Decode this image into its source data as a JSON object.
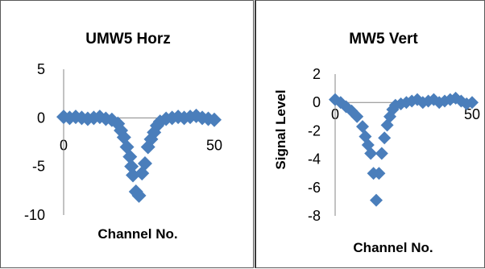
{
  "chart_data": [
    {
      "type": "scatter",
      "title": "UMW5 Horz",
      "xlabel": "Channel No.",
      "ylabel": "",
      "xlim": [
        0,
        50
      ],
      "ylim": [
        -10,
        5
      ],
      "xticks": [
        "0",
        "50"
      ],
      "yticks": [
        "5",
        "0",
        "-5",
        "-10"
      ],
      "marker": "diamond",
      "color": "#4a7ebb",
      "points": [
        [
          0,
          0.1
        ],
        [
          2,
          0.0
        ],
        [
          4,
          0.1
        ],
        [
          6,
          0.0
        ],
        [
          8,
          -0.1
        ],
        [
          10,
          0.0
        ],
        [
          12,
          0.1
        ],
        [
          14,
          -0.1
        ],
        [
          16,
          -0.2
        ],
        [
          18,
          -0.6
        ],
        [
          19,
          -1.3
        ],
        [
          20,
          -2.0
        ],
        [
          21,
          -3.0
        ],
        [
          22,
          -4.0
        ],
        [
          22.5,
          -5.0
        ],
        [
          23,
          -5.9
        ],
        [
          24,
          -7.6
        ],
        [
          25,
          -8.0
        ],
        [
          26,
          -5.7
        ],
        [
          27,
          -4.7
        ],
        [
          28,
          -3.0
        ],
        [
          29,
          -2.2
        ],
        [
          30,
          -1.5
        ],
        [
          31,
          -0.8
        ],
        [
          32,
          -0.4
        ],
        [
          34,
          -0.1
        ],
        [
          36,
          0.0
        ],
        [
          38,
          0.1
        ],
        [
          40,
          0.0
        ],
        [
          42,
          0.1
        ],
        [
          44,
          0.2
        ],
        [
          46,
          0.0
        ],
        [
          48,
          -0.1
        ],
        [
          50,
          -0.2
        ]
      ]
    },
    {
      "type": "scatter",
      "title": "MW5 Vert",
      "xlabel": "Channel No.",
      "ylabel": "Signal Level",
      "xlim": [
        0,
        50
      ],
      "ylim": [
        -8,
        2
      ],
      "xticks": [
        "0",
        "50"
      ],
      "yticks": [
        "2",
        "0",
        "-2",
        "-4",
        "-6",
        "-8"
      ],
      "marker": "diamond",
      "color": "#4a7ebb",
      "points": [
        [
          0,
          0.2
        ],
        [
          2,
          0.0
        ],
        [
          4,
          -0.3
        ],
        [
          6,
          -0.6
        ],
        [
          8,
          -1.0
        ],
        [
          10,
          -1.7
        ],
        [
          11,
          -2.4
        ],
        [
          12,
          -3.0
        ],
        [
          13,
          -3.6
        ],
        [
          14,
          -5.0
        ],
        [
          15,
          -6.9
        ],
        [
          16,
          -5.0
        ],
        [
          17,
          -3.6
        ],
        [
          18,
          -2.5
        ],
        [
          19,
          -1.6
        ],
        [
          20,
          -1.0
        ],
        [
          21,
          -0.5
        ],
        [
          22,
          -0.2
        ],
        [
          24,
          -0.1
        ],
        [
          26,
          0.0
        ],
        [
          28,
          0.1
        ],
        [
          30,
          0.2
        ],
        [
          32,
          0.0
        ],
        [
          34,
          0.1
        ],
        [
          36,
          0.2
        ],
        [
          38,
          0.0
        ],
        [
          40,
          0.1
        ],
        [
          42,
          0.2
        ],
        [
          44,
          0.3
        ],
        [
          46,
          0.1
        ],
        [
          48,
          -0.1
        ],
        [
          50,
          0.0
        ]
      ]
    }
  ]
}
